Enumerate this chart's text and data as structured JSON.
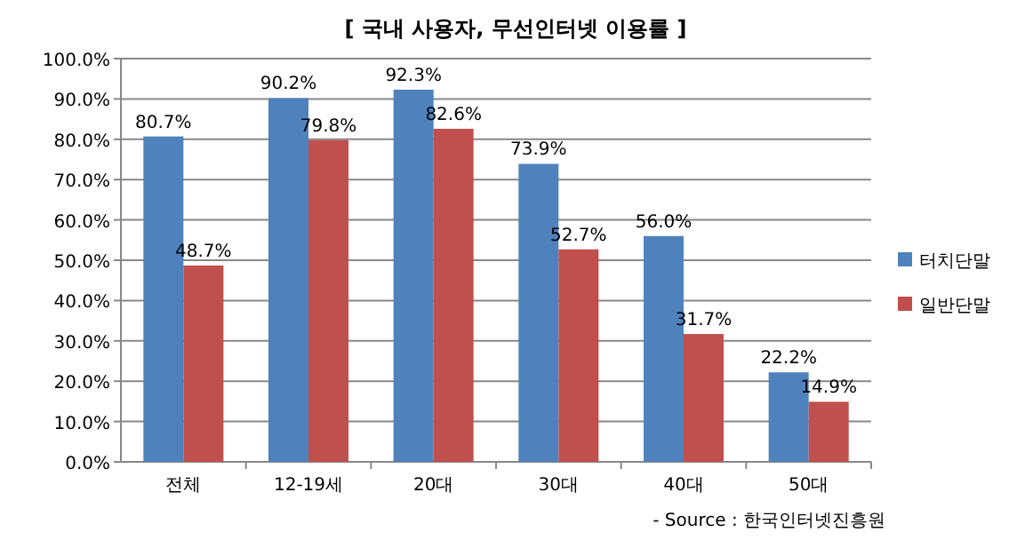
{
  "chart_data": {
    "type": "bar",
    "title": "[ 국내 사용자, 무선인터넷 이용률 ]",
    "categories": [
      "전체",
      "12-19세",
      "20대",
      "30대",
      "40대",
      "50대"
    ],
    "series": [
      {
        "name": "터치단말",
        "color": "#4f81bd",
        "values": [
          80.7,
          90.2,
          92.3,
          73.9,
          56.0,
          22.2
        ],
        "value_labels": [
          "80.7%",
          "90.2%",
          "92.3%",
          "73.9%",
          "56.0%",
          "22.2%"
        ]
      },
      {
        "name": "일반단말",
        "color": "#c0504d",
        "values": [
          48.7,
          79.8,
          82.6,
          52.7,
          31.7,
          14.9
        ],
        "value_labels": [
          "48.7%",
          "79.8%",
          "82.6%",
          "52.7%",
          "31.7%",
          "14.9%"
        ]
      }
    ],
    "ylim": [
      0,
      100
    ],
    "yticks": [
      {
        "value": 0,
        "label": "0.0%"
      },
      {
        "value": 10,
        "label": "10.0%"
      },
      {
        "value": 20,
        "label": "20.0%"
      },
      {
        "value": 30,
        "label": "30.0%"
      },
      {
        "value": 40,
        "label": "40.0%"
      },
      {
        "value": 50,
        "label": "50.0%"
      },
      {
        "value": 60,
        "label": "60.0%"
      },
      {
        "value": 70,
        "label": "70.0%"
      },
      {
        "value": 80,
        "label": "80.0%"
      },
      {
        "value": 90,
        "label": "90.0%"
      },
      {
        "value": 100,
        "label": "100.0%"
      }
    ],
    "grid": "y",
    "legend": "right",
    "annotations": [
      "- Source : 한국인터넷진흥원"
    ]
  }
}
